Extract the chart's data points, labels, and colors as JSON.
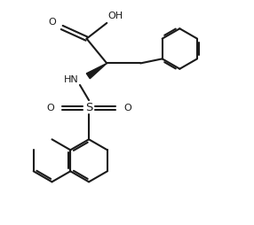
{
  "bg_color": "#ffffff",
  "line_color": "#1a1a1a",
  "line_width": 1.5,
  "figsize": [
    2.86,
    2.54
  ],
  "dpi": 100,
  "xlim": [
    0,
    10
  ],
  "ylim": [
    0,
    10
  ]
}
